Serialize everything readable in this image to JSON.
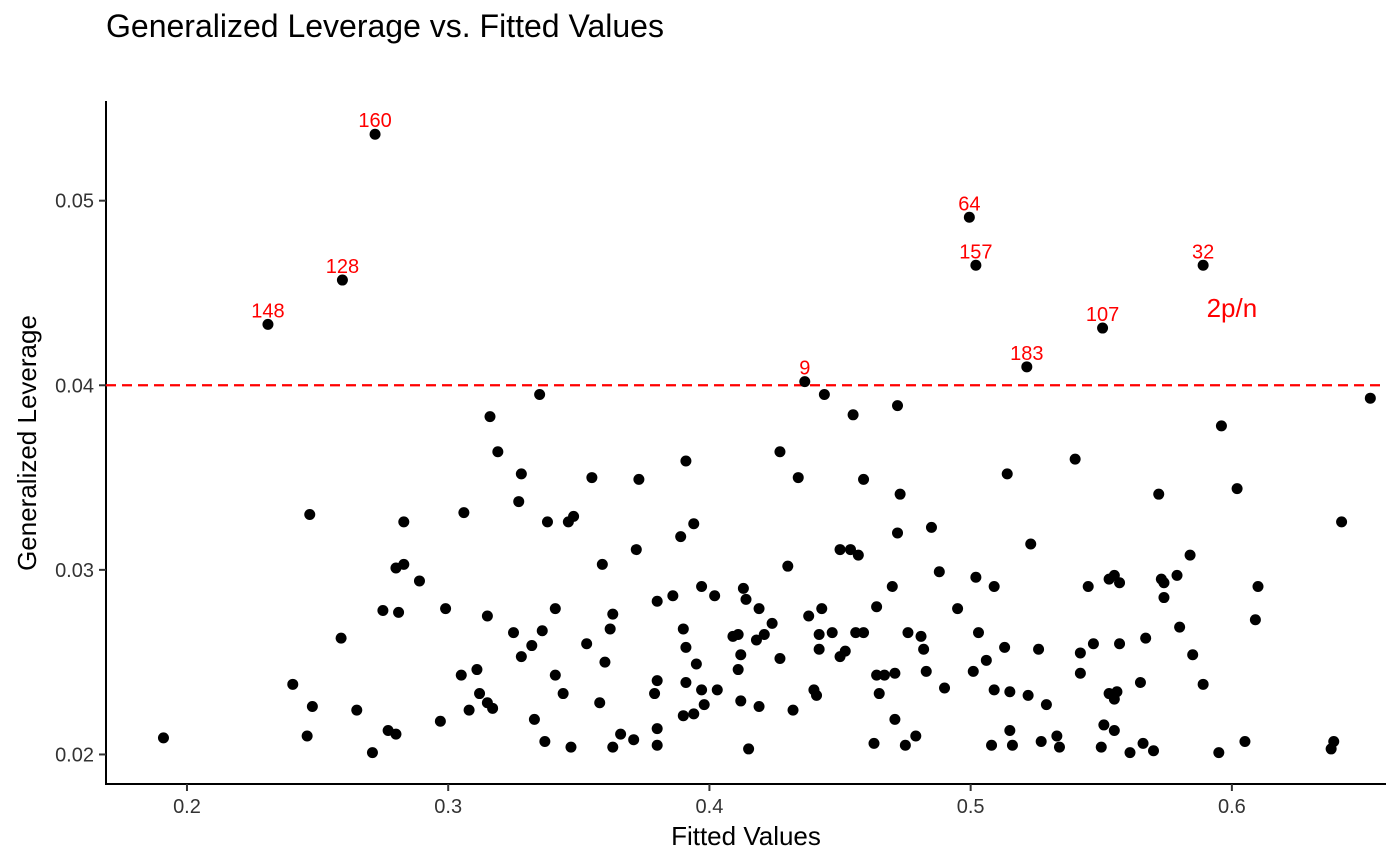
{
  "chart_data": {
    "type": "scatter",
    "title": "Generalized Leverage vs. Fitted Values",
    "xlabel": "Fitted Values",
    "ylabel": "Generalized Leverage",
    "xlim": [
      0.169,
      0.659
    ],
    "ylim": [
      0.0184,
      0.0554
    ],
    "xticks": [
      0.2,
      0.3,
      0.4,
      0.5,
      0.6
    ],
    "xtick_labels": [
      "0.2",
      "0.3",
      "0.4",
      "0.5",
      "0.6"
    ],
    "yticks": [
      0.02,
      0.03,
      0.04,
      0.05
    ],
    "ytick_labels": [
      "0.02",
      "0.03",
      "0.04",
      "0.05"
    ],
    "grid": false,
    "threshold": {
      "value": 0.04,
      "label": "2p/n",
      "color": "#ff0000",
      "style": "dashed",
      "label_x": 0.6,
      "label_y": 0.0437
    },
    "point_color": "#000000",
    "label_color": "#ff0000",
    "labeled_points": [
      {
        "label": "160",
        "x": 0.272,
        "y": 0.0536
      },
      {
        "label": "64",
        "x": 0.4995,
        "y": 0.0491
      },
      {
        "label": "157",
        "x": 0.502,
        "y": 0.0465
      },
      {
        "label": "32",
        "x": 0.589,
        "y": 0.0465
      },
      {
        "label": "128",
        "x": 0.2595,
        "y": 0.0457
      },
      {
        "label": "148",
        "x": 0.231,
        "y": 0.0433
      },
      {
        "label": "107",
        "x": 0.5505,
        "y": 0.0431
      },
      {
        "label": "183",
        "x": 0.5215,
        "y": 0.041
      },
      {
        "label": "9",
        "x": 0.4365,
        "y": 0.0402
      }
    ],
    "points": [
      [
        0.191,
        0.0209
      ],
      [
        0.2405,
        0.0238
      ],
      [
        0.246,
        0.021
      ],
      [
        0.247,
        0.033
      ],
      [
        0.248,
        0.0226
      ],
      [
        0.259,
        0.0263
      ],
      [
        0.265,
        0.0224
      ],
      [
        0.271,
        0.0201
      ],
      [
        0.275,
        0.0278
      ],
      [
        0.277,
        0.0213
      ],
      [
        0.28,
        0.0301
      ],
      [
        0.28,
        0.0211
      ],
      [
        0.281,
        0.0277
      ],
      [
        0.283,
        0.0303
      ],
      [
        0.283,
        0.0326
      ],
      [
        0.289,
        0.0294
      ],
      [
        0.297,
        0.0218
      ],
      [
        0.299,
        0.0279
      ],
      [
        0.305,
        0.0243
      ],
      [
        0.306,
        0.0331
      ],
      [
        0.308,
        0.0224
      ],
      [
        0.311,
        0.0246
      ],
      [
        0.312,
        0.0233
      ],
      [
        0.315,
        0.0275
      ],
      [
        0.315,
        0.0228
      ],
      [
        0.316,
        0.0383
      ],
      [
        0.317,
        0.0225
      ],
      [
        0.319,
        0.0364
      ],
      [
        0.325,
        0.0266
      ],
      [
        0.327,
        0.0337
      ],
      [
        0.328,
        0.0253
      ],
      [
        0.328,
        0.0352
      ],
      [
        0.332,
        0.0259
      ],
      [
        0.333,
        0.0219
      ],
      [
        0.335,
        0.0395
      ],
      [
        0.336,
        0.0267
      ],
      [
        0.337,
        0.0207
      ],
      [
        0.338,
        0.0326
      ],
      [
        0.341,
        0.0279
      ],
      [
        0.341,
        0.0243
      ],
      [
        0.344,
        0.0233
      ],
      [
        0.346,
        0.0326
      ],
      [
        0.347,
        0.0204
      ],
      [
        0.348,
        0.0329
      ],
      [
        0.353,
        0.026
      ],
      [
        0.355,
        0.035
      ],
      [
        0.358,
        0.0228
      ],
      [
        0.359,
        0.0303
      ],
      [
        0.36,
        0.025
      ],
      [
        0.362,
        0.0268
      ],
      [
        0.363,
        0.0276
      ],
      [
        0.363,
        0.0204
      ],
      [
        0.366,
        0.0211
      ],
      [
        0.371,
        0.0208
      ],
      [
        0.372,
        0.0311
      ],
      [
        0.373,
        0.0349
      ],
      [
        0.379,
        0.0233
      ],
      [
        0.38,
        0.024
      ],
      [
        0.38,
        0.0214
      ],
      [
        0.38,
        0.0205
      ],
      [
        0.38,
        0.0283
      ],
      [
        0.386,
        0.0286
      ],
      [
        0.389,
        0.0318
      ],
      [
        0.39,
        0.0268
      ],
      [
        0.39,
        0.0221
      ],
      [
        0.391,
        0.0359
      ],
      [
        0.391,
        0.0239
      ],
      [
        0.391,
        0.0258
      ],
      [
        0.394,
        0.0222
      ],
      [
        0.394,
        0.0325
      ],
      [
        0.395,
        0.0249
      ],
      [
        0.397,
        0.0235
      ],
      [
        0.397,
        0.0291
      ],
      [
        0.398,
        0.0227
      ],
      [
        0.402,
        0.0286
      ],
      [
        0.403,
        0.0235
      ],
      [
        0.409,
        0.0264
      ],
      [
        0.411,
        0.0265
      ],
      [
        0.411,
        0.0246
      ],
      [
        0.412,
        0.0254
      ],
      [
        0.412,
        0.0229
      ],
      [
        0.413,
        0.029
      ],
      [
        0.414,
        0.0284
      ],
      [
        0.415,
        0.0203
      ],
      [
        0.418,
        0.0262
      ],
      [
        0.419,
        0.0279
      ],
      [
        0.419,
        0.0226
      ],
      [
        0.421,
        0.0265
      ],
      [
        0.424,
        0.0271
      ],
      [
        0.427,
        0.0252
      ],
      [
        0.427,
        0.0364
      ],
      [
        0.43,
        0.0302
      ],
      [
        0.432,
        0.0224
      ],
      [
        0.434,
        0.035
      ],
      [
        0.438,
        0.0275
      ],
      [
        0.44,
        0.0235
      ],
      [
        0.441,
        0.0232
      ],
      [
        0.442,
        0.0265
      ],
      [
        0.442,
        0.0257
      ],
      [
        0.443,
        0.0279
      ],
      [
        0.444,
        0.0395
      ],
      [
        0.447,
        0.0266
      ],
      [
        0.45,
        0.0311
      ],
      [
        0.45,
        0.0253
      ],
      [
        0.452,
        0.0256
      ],
      [
        0.454,
        0.0311
      ],
      [
        0.455,
        0.0384
      ],
      [
        0.456,
        0.0266
      ],
      [
        0.457,
        0.0308
      ],
      [
        0.459,
        0.0266
      ],
      [
        0.459,
        0.0349
      ],
      [
        0.463,
        0.0206
      ],
      [
        0.464,
        0.028
      ],
      [
        0.464,
        0.0243
      ],
      [
        0.465,
        0.0233
      ],
      [
        0.467,
        0.0243
      ],
      [
        0.47,
        0.0291
      ],
      [
        0.471,
        0.0244
      ],
      [
        0.471,
        0.0219
      ],
      [
        0.472,
        0.0389
      ],
      [
        0.472,
        0.032
      ],
      [
        0.473,
        0.0341
      ],
      [
        0.475,
        0.0205
      ],
      [
        0.476,
        0.0266
      ],
      [
        0.479,
        0.021
      ],
      [
        0.481,
        0.0264
      ],
      [
        0.482,
        0.0257
      ],
      [
        0.483,
        0.0245
      ],
      [
        0.485,
        0.0323
      ],
      [
        0.488,
        0.0299
      ],
      [
        0.49,
        0.0236
      ],
      [
        0.495,
        0.0279
      ],
      [
        0.501,
        0.0245
      ],
      [
        0.502,
        0.0296
      ],
      [
        0.503,
        0.0266
      ],
      [
        0.506,
        0.0251
      ],
      [
        0.508,
        0.0205
      ],
      [
        0.509,
        0.0235
      ],
      [
        0.509,
        0.0291
      ],
      [
        0.513,
        0.0258
      ],
      [
        0.514,
        0.0352
      ],
      [
        0.515,
        0.0234
      ],
      [
        0.515,
        0.0213
      ],
      [
        0.516,
        0.0205
      ],
      [
        0.522,
        0.0232
      ],
      [
        0.523,
        0.0314
      ],
      [
        0.526,
        0.0257
      ],
      [
        0.527,
        0.0207
      ],
      [
        0.529,
        0.0227
      ],
      [
        0.533,
        0.021
      ],
      [
        0.534,
        0.0204
      ],
      [
        0.54,
        0.036
      ],
      [
        0.542,
        0.0255
      ],
      [
        0.542,
        0.0244
      ],
      [
        0.545,
        0.0291
      ],
      [
        0.547,
        0.026
      ],
      [
        0.55,
        0.0204
      ],
      [
        0.551,
        0.0216
      ],
      [
        0.553,
        0.0233
      ],
      [
        0.553,
        0.0295
      ],
      [
        0.555,
        0.0297
      ],
      [
        0.555,
        0.0213
      ],
      [
        0.555,
        0.023
      ],
      [
        0.556,
        0.0234
      ],
      [
        0.557,
        0.0293
      ],
      [
        0.557,
        0.026
      ],
      [
        0.561,
        0.0201
      ],
      [
        0.565,
        0.0239
      ],
      [
        0.566,
        0.0206
      ],
      [
        0.567,
        0.0263
      ],
      [
        0.57,
        0.0202
      ],
      [
        0.572,
        0.0341
      ],
      [
        0.573,
        0.0295
      ],
      [
        0.574,
        0.0293
      ],
      [
        0.574,
        0.0285
      ],
      [
        0.579,
        0.0297
      ],
      [
        0.58,
        0.0269
      ],
      [
        0.584,
        0.0308
      ],
      [
        0.585,
        0.0254
      ],
      [
        0.589,
        0.0238
      ],
      [
        0.595,
        0.0201
      ],
      [
        0.596,
        0.0378
      ],
      [
        0.602,
        0.0344
      ],
      [
        0.605,
        0.0207
      ],
      [
        0.609,
        0.0273
      ],
      [
        0.61,
        0.0291
      ],
      [
        0.638,
        0.0203
      ],
      [
        0.639,
        0.0207
      ],
      [
        0.642,
        0.0326
      ],
      [
        0.653,
        0.0393
      ]
    ]
  }
}
